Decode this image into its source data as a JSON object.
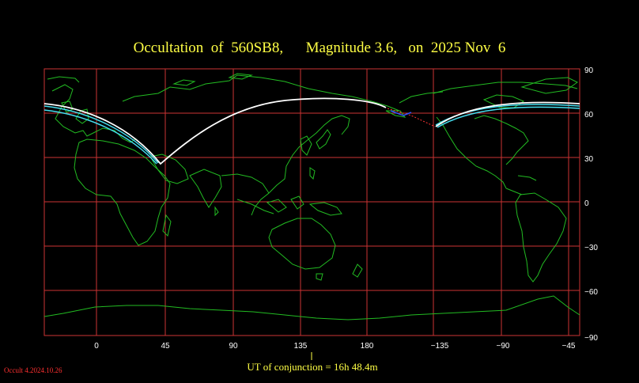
{
  "title": "Occultation  of  560SB8,      Magnitude 3.6,   on  2025 Nov  6",
  "x_tick_labels": [
    "0",
    "45",
    "90",
    "135",
    "180",
    "−135",
    "−90",
    "−45"
  ],
  "y_tick_labels": [
    "90",
    "60",
    "30",
    "0",
    "−30",
    "−60",
    "−90"
  ],
  "conjunction_text": "UT of conjunction = 16h 48.4m",
  "version_text": "Occult 4.2024.10.26",
  "colors": {
    "background": "#000000",
    "grid": "#cc3333",
    "coastline": "#22bb22",
    "title": "#ffff44",
    "path_center": "#ffffff",
    "path_limits": "#44ddee",
    "night_path": "#ff3333"
  }
}
